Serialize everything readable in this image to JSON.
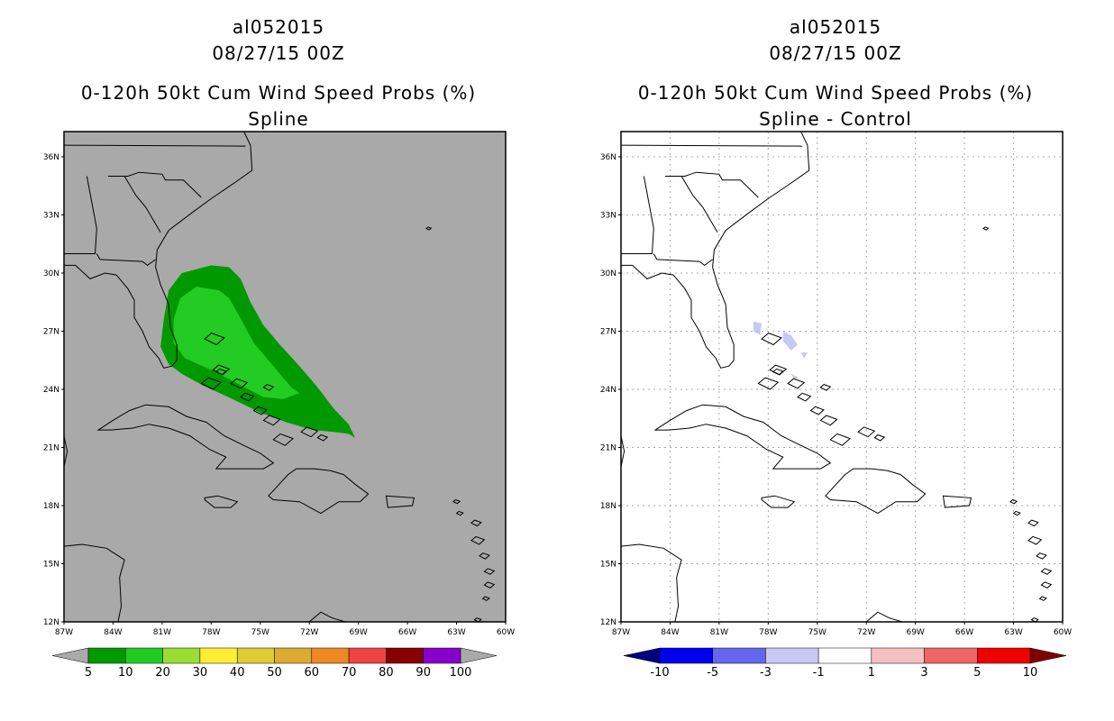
{
  "left_panel": {
    "title_line1": "al052015",
    "title_line2": "08/27/15 00Z",
    "title_line3": "0-120h 50kt Cum Wind Speed Probs (%)",
    "title_line4": "Spline",
    "background_color": "#a9a9a9",
    "colorbar": {
      "labels": [
        "5",
        "10",
        "20",
        "30",
        "40",
        "50",
        "60",
        "70",
        "80",
        "90",
        "100"
      ],
      "colors": [
        "#009900",
        "#22cc22",
        "#99dd33",
        "#ffee33",
        "#ddcc33",
        "#ddaa33",
        "#ee8822",
        "#ee4444",
        "#880000",
        "#8800cc"
      ],
      "arrow_color": "#aaaaaa"
    }
  },
  "right_panel": {
    "title_line1": "al052015",
    "title_line2": "08/27/15 00Z",
    "title_line3": "0-120h 50kt Cum Wind Speed Probs (%)",
    "title_line4": "Spline - Control",
    "background_color": "#ffffff",
    "colorbar": {
      "labels": [
        "-10",
        "-5",
        "-3",
        "-1",
        "1",
        "3",
        "5",
        "10"
      ],
      "colors": [
        "#0000ee",
        "#6666ee",
        "#c8c8f5",
        "#ffffff",
        "#f5c0c0",
        "#ee6666",
        "#ee0000"
      ],
      "left_arrow_color": "#000080",
      "right_arrow_color": "#800000"
    }
  },
  "axes": {
    "lat_labels": [
      "36N",
      "33N",
      "30N",
      "27N",
      "24N",
      "21N",
      "18N",
      "15N",
      "12N"
    ],
    "lon_labels": [
      "87W",
      "84W",
      "81W",
      "78W",
      "75W",
      "72W",
      "69W",
      "66W",
      "63W",
      "60W"
    ]
  },
  "colors": {
    "prob_5_10": "#009900",
    "prob_10_20": "#22cc22",
    "diff_minus_1_minus_3": "#c8c8f5",
    "coastline": "#000000",
    "grid": "#aaaaaa"
  }
}
